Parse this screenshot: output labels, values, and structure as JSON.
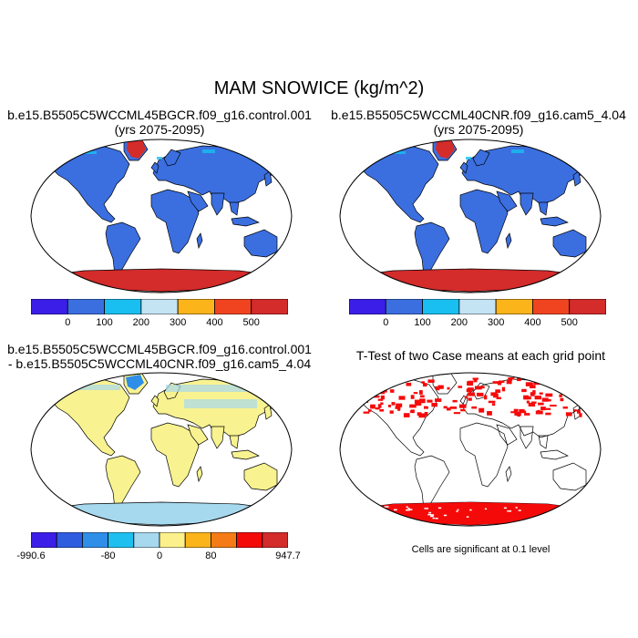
{
  "title": "MAM SNOWICE (kg/m^2)",
  "panels": [
    {
      "line1": "b.e15.B5505C5WCCML45BGCR.f09_g16.control.001",
      "line2": "(yrs 2075-2095)"
    },
    {
      "line1": "b.e15.B5505C5WCCML40CNR.f09_g16.cam5_4.04",
      "line2": "(yrs 2075-2095)"
    },
    {
      "line1": "b.e15.B5505C5WCCML45BGCR.f09_g16.control.001",
      "line2": "- b.e15.B5505C5WCCML40CNR.f09_g16.cam5_4.04"
    },
    {
      "line1": "T-Test of two Case means at each grid point",
      "line2": ""
    }
  ],
  "colorbar_top": {
    "colors": [
      "#3b1ee8",
      "#3b6fe0",
      "#19bff0",
      "#c4e4f4",
      "#fbb41a",
      "#f04420",
      "#d42b2b"
    ],
    "labels": [
      "0",
      "100",
      "200",
      "300",
      "400",
      "500"
    ]
  },
  "colorbar_diff": {
    "colors": [
      "#3b1ee8",
      "#2f5de0",
      "#2f8ee8",
      "#1fc0f0",
      "#a6d8ee",
      "#fcf08c",
      "#fbb41a",
      "#f47b16",
      "#f50a0a",
      "#d42b2b"
    ],
    "labels": [
      "-990.6",
      "-80",
      "0",
      "80",
      "947.7"
    ]
  },
  "significance_note": "Cells are significant at 0.1 level",
  "map_colors": {
    "land_mean": "#3b6fe0",
    "land_diff": "#f8f290",
    "antarctica_mean": "#d42b2b",
    "antarctica_diff": "#a6d8ee",
    "significant": "#f50a0a"
  }
}
